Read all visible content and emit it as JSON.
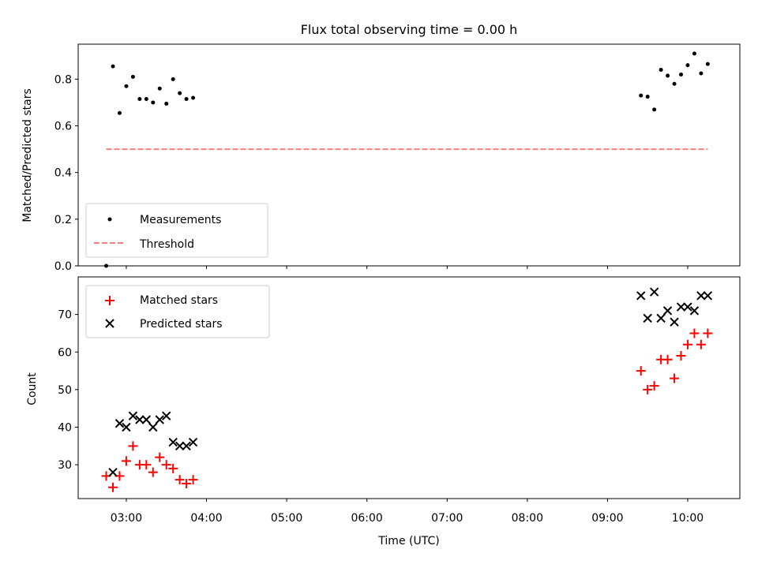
{
  "chart_data": [
    {
      "type": "scatter",
      "title": "Flux total observing time = 0.00 h",
      "xlabel": "",
      "ylabel": "Matched/Predicted stars",
      "xlim": [
        "02:24",
        "10:39"
      ],
      "ylim": [
        0,
        0.95
      ],
      "yticks": [
        0.0,
        0.2,
        0.4,
        0.6,
        0.8
      ],
      "ytick_labels": [
        "0.0",
        "0.2",
        "0.4",
        "0.6",
        "0.8"
      ],
      "grid": false,
      "legend": "lower-left",
      "series": [
        {
          "name": "Measurements",
          "marker": "dot",
          "color": "#000000",
          "points": [
            [
              "02:45",
              0.0
            ],
            [
              "02:50",
              0.855
            ],
            [
              "02:55",
              0.655
            ],
            [
              "03:00",
              0.77
            ],
            [
              "03:05",
              0.81
            ],
            [
              "03:10",
              0.715
            ],
            [
              "03:15",
              0.715
            ],
            [
              "03:20",
              0.7
            ],
            [
              "03:25",
              0.76
            ],
            [
              "03:30",
              0.695
            ],
            [
              "03:35",
              0.8
            ],
            [
              "03:40",
              0.74
            ],
            [
              "03:45",
              0.715
            ],
            [
              "03:50",
              0.72
            ],
            [
              "09:25",
              0.73
            ],
            [
              "09:30",
              0.725
            ],
            [
              "09:35",
              0.67
            ],
            [
              "09:40",
              0.84
            ],
            [
              "09:45",
              0.815
            ],
            [
              "09:50",
              0.78
            ],
            [
              "09:55",
              0.82
            ],
            [
              "10:00",
              0.86
            ],
            [
              "10:05",
              0.91
            ],
            [
              "10:10",
              0.825
            ],
            [
              "10:15",
              0.865
            ]
          ]
        },
        {
          "name": "Threshold",
          "style": "dashed",
          "color": "#ff7f7f",
          "points": [
            [
              "02:45",
              0.5
            ],
            [
              "10:15",
              0.5
            ]
          ]
        }
      ]
    },
    {
      "type": "scatter",
      "title": "",
      "xlabel": "Time (UTC)",
      "ylabel": "Count",
      "xlim": [
        "02:24",
        "10:39"
      ],
      "ylim": [
        21,
        80
      ],
      "xticks": [
        "03:00",
        "04:00",
        "05:00",
        "06:00",
        "07:00",
        "08:00",
        "09:00",
        "10:00"
      ],
      "yticks": [
        30,
        40,
        50,
        60,
        70
      ],
      "ytick_labels": [
        "30",
        "40",
        "50",
        "60",
        "70"
      ],
      "grid": false,
      "legend": "top-left",
      "series": [
        {
          "name": "Matched stars",
          "marker": "plus",
          "color": "#ff0000",
          "points": [
            [
              "02:45",
              27
            ],
            [
              "02:50",
              24
            ],
            [
              "02:55",
              27
            ],
            [
              "03:00",
              31
            ],
            [
              "03:05",
              35
            ],
            [
              "03:10",
              30
            ],
            [
              "03:15",
              30
            ],
            [
              "03:20",
              28
            ],
            [
              "03:25",
              32
            ],
            [
              "03:30",
              30
            ],
            [
              "03:35",
              29
            ],
            [
              "03:40",
              26
            ],
            [
              "03:45",
              25
            ],
            [
              "03:50",
              26
            ],
            [
              "09:25",
              55
            ],
            [
              "09:30",
              50
            ],
            [
              "09:35",
              51
            ],
            [
              "09:40",
              58
            ],
            [
              "09:45",
              58
            ],
            [
              "09:50",
              53
            ],
            [
              "09:55",
              59
            ],
            [
              "10:00",
              62
            ],
            [
              "10:05",
              65
            ],
            [
              "10:10",
              62
            ],
            [
              "10:15",
              65
            ]
          ]
        },
        {
          "name": "Predicted stars",
          "marker": "x",
          "color": "#000000",
          "points": [
            [
              "02:50",
              28
            ],
            [
              "02:55",
              41
            ],
            [
              "03:00",
              40
            ],
            [
              "03:05",
              43
            ],
            [
              "03:10",
              42
            ],
            [
              "03:15",
              42
            ],
            [
              "03:20",
              40
            ],
            [
              "03:25",
              42
            ],
            [
              "03:30",
              43
            ],
            [
              "03:35",
              36
            ],
            [
              "03:40",
              35
            ],
            [
              "03:45",
              35
            ],
            [
              "03:50",
              36
            ],
            [
              "09:25",
              75
            ],
            [
              "09:30",
              69
            ],
            [
              "09:35",
              76
            ],
            [
              "09:40",
              69
            ],
            [
              "09:45",
              71
            ],
            [
              "09:50",
              68
            ],
            [
              "09:55",
              72
            ],
            [
              "10:00",
              72
            ],
            [
              "10:05",
              71
            ],
            [
              "10:10",
              75
            ],
            [
              "10:15",
              75
            ]
          ]
        }
      ]
    }
  ]
}
